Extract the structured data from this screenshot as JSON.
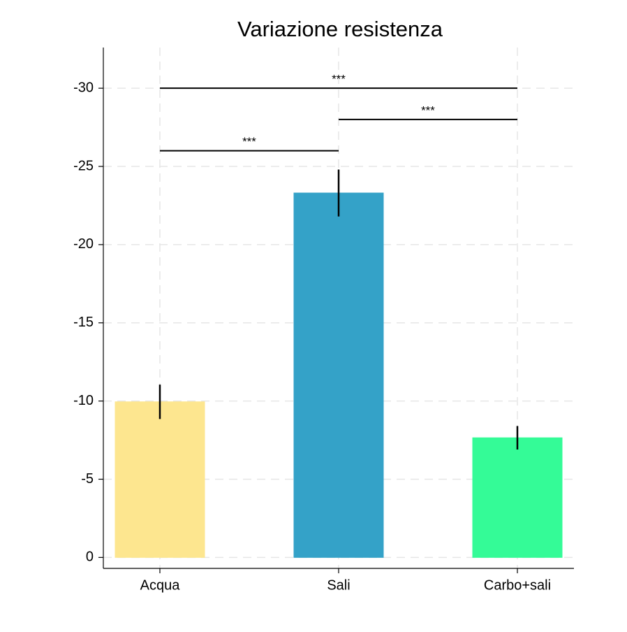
{
  "chart_data": {
    "type": "bar",
    "title": "Variazione resistenza",
    "categories": [
      "Acqua",
      "Sali",
      "Carbo+sali"
    ],
    "values": [
      -9.95,
      -23.3,
      -7.65
    ],
    "errors": [
      1.1,
      1.5,
      0.75
    ],
    "colors": [
      "#fde68f",
      "#34a2c8",
      "#34fb97"
    ],
    "ylim": [
      0.7,
      -32.6
    ],
    "yticks": [
      0,
      -5,
      -10,
      -15,
      -20,
      -25,
      -30
    ],
    "grid": true,
    "annotations": [
      {
        "from": 0,
        "to": 2,
        "y": -30,
        "label": "***"
      },
      {
        "from": 1,
        "to": 2,
        "y": -28,
        "label": "***"
      },
      {
        "from": 0,
        "to": 1,
        "y": -26,
        "label": "***"
      }
    ]
  }
}
